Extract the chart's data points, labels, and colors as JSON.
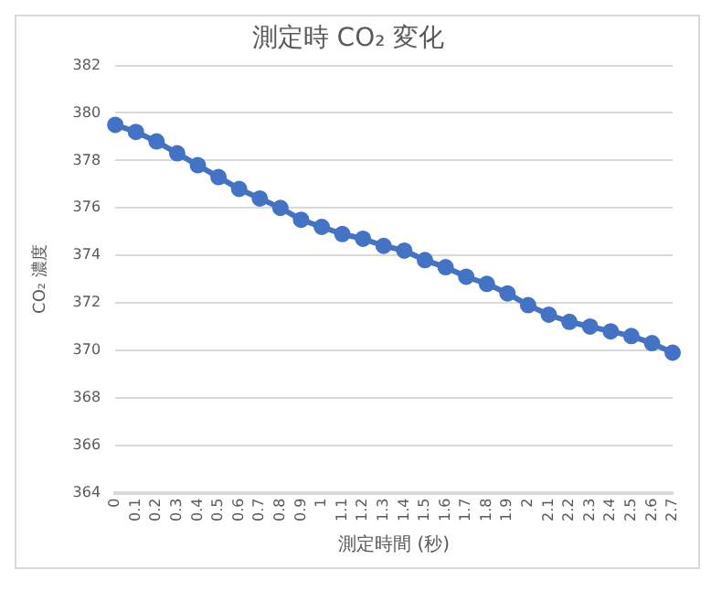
{
  "chart_data": {
    "type": "line",
    "title": "測定時 CO₂ 変化",
    "xlabel": "測定時間 (秒)",
    "ylabel": "CO₂ 濃度",
    "categories": [
      "0",
      "0.1",
      "0.2",
      "0.3",
      "0.4",
      "0.5",
      "0.6",
      "0.7",
      "0.8",
      "0.9",
      "1",
      "1.1",
      "1.2",
      "1.3",
      "1.4",
      "1.5",
      "1.6",
      "1.7",
      "1.8",
      "1.9",
      "2",
      "2.1",
      "2.2",
      "2.3",
      "2.4",
      "2.5",
      "2.6",
      "2.7"
    ],
    "series": [
      {
        "color": "#4472c4",
        "values": [
          379.5,
          379.2,
          378.8,
          378.3,
          377.8,
          377.3,
          376.8,
          376.4,
          376.0,
          375.5,
          375.2,
          374.9,
          374.7,
          374.4,
          374.2,
          373.8,
          373.5,
          373.1,
          372.8,
          372.4,
          371.9,
          371.5,
          371.2,
          371.0,
          370.8,
          370.6,
          370.3,
          369.9
        ]
      }
    ],
    "ylim": [
      364,
      382
    ],
    "yticks": [
      364,
      366,
      368,
      370,
      372,
      374,
      376,
      378,
      380,
      382
    ],
    "grid": "y",
    "marker": "circle",
    "legend": false
  }
}
